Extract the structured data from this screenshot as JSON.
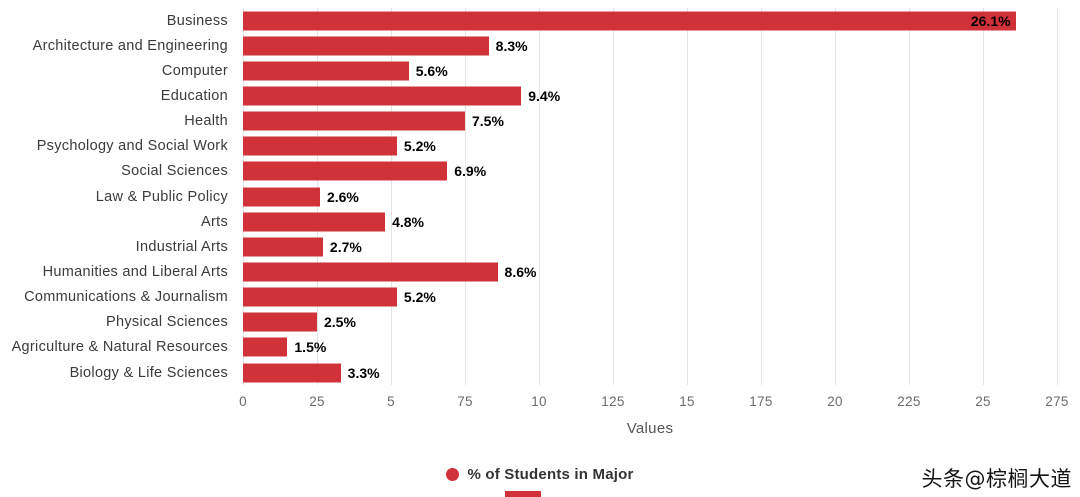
{
  "chart_data": {
    "type": "bar",
    "orientation": "horizontal",
    "title": "",
    "xlabel": "Values",
    "series_name": "% of Students in Major",
    "categories": [
      "Business",
      "Architecture and Engineering",
      "Computer",
      "Education",
      "Health",
      "Psychology and Social Work",
      "Social Sciences",
      "Law & Public Policy",
      "Arts",
      "Industrial Arts",
      "Humanities and Liberal Arts",
      "Communications & Journalism",
      "Physical Sciences",
      "Agriculture & Natural Resources",
      "Biology & Life Sciences"
    ],
    "values": [
      26.1,
      8.3,
      5.6,
      9.4,
      7.5,
      5.2,
      6.9,
      2.6,
      4.8,
      2.7,
      8.6,
      5.2,
      2.5,
      1.5,
      3.3
    ],
    "value_labels": [
      "26.1%",
      "8.3%",
      "5.6%",
      "9.4%",
      "7.5%",
      "5.2%",
      "6.9%",
      "2.6%",
      "4.8%",
      "2.7%",
      "8.6%",
      "5.2%",
      "2.5%",
      "1.5%",
      "3.3%"
    ],
    "axis_tick_labels": [
      "0",
      "25",
      "5",
      "75",
      "10",
      "125",
      "15",
      "175",
      "20",
      "225",
      "25",
      "275"
    ],
    "axis_max_units": 275,
    "value_to_axis_unit_scale": 10,
    "grid": true,
    "legend_position": "bottom-center",
    "bar_color": "#d13138",
    "gridline_color": "#e4e4e4"
  },
  "legend": {
    "label": "% of Students in Major"
  },
  "axis": {
    "title": "Values"
  },
  "watermark": {
    "text": "头条@棕榈大道"
  }
}
